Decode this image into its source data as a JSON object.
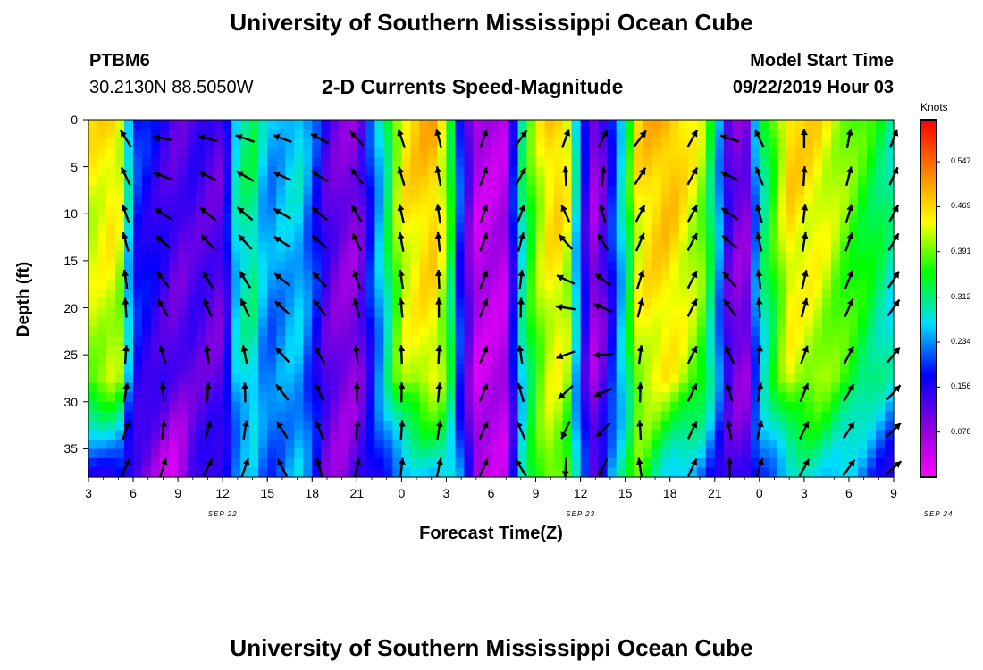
{
  "header": {
    "title": "University of Southern Mississippi Ocean Cube",
    "station_id": "PTBM6",
    "station_coords": "30.2130N 88.5050W",
    "plot_title": "2-D Currents Speed-Magnitude",
    "model_start_label": "Model Start Time",
    "model_start_value": "09/22/2019 Hour 03"
  },
  "footer": {
    "title": "University of Southern Mississippi Ocean Cube"
  },
  "chart_data": {
    "type": "heatmap",
    "title": "2-D Currents Speed-Magnitude",
    "xlabel": "Forecast Time(Z)",
    "ylabel": "Depth (ft)",
    "x_tick_labels": [
      "3",
      "6",
      "9",
      "12",
      "15",
      "18",
      "21",
      "0",
      "3",
      "6",
      "9",
      "12",
      "15",
      "18",
      "21",
      "0",
      "3",
      "6",
      "9"
    ],
    "x_range_hours": [
      0,
      54
    ],
    "date_labels": [
      {
        "text": "SEP 22",
        "hour": 9
      },
      {
        "text": "SEP 23",
        "hour": 33
      },
      {
        "text": "SEP 24",
        "hour": 57
      }
    ],
    "y_tick_labels": [
      "0",
      "5",
      "10",
      "15",
      "20",
      "25",
      "30",
      "35"
    ],
    "ylim": [
      0,
      38
    ],
    "colorbar": {
      "units": "Knots",
      "ticks": [
        "0.547",
        "0.469",
        "0.391",
        "0.312",
        "0.234",
        "0.156",
        "0.078"
      ],
      "range": [
        0.0,
        0.62
      ],
      "colors": [
        "#ff00ff",
        "#8800dd",
        "#0000ff",
        "#00ddff",
        "#00ff00",
        "#ffff00",
        "#ff7f00",
        "#ff0000"
      ]
    },
    "speed_profile_by_hour": [
      {
        "hour": 0,
        "top": 0.45,
        "bottom": 0.14
      },
      {
        "hour": 2,
        "top": 0.47,
        "bottom": 0.18
      },
      {
        "hour": 3,
        "top": 0.2,
        "bottom": 0.12
      },
      {
        "hour": 5,
        "top": 0.15,
        "bottom": 0.05
      },
      {
        "hour": 6,
        "top": 0.12,
        "bottom": 0.03
      },
      {
        "hour": 7,
        "top": 0.14,
        "bottom": 0.12
      },
      {
        "hour": 9,
        "top": 0.12,
        "bottom": 0.18
      },
      {
        "hour": 10,
        "top": 0.3,
        "bottom": 0.22
      },
      {
        "hour": 11,
        "top": 0.33,
        "bottom": 0.25
      },
      {
        "hour": 12,
        "top": 0.24,
        "bottom": 0.2
      },
      {
        "hour": 14,
        "top": 0.28,
        "bottom": 0.26
      },
      {
        "hour": 15,
        "top": 0.22,
        "bottom": 0.2
      },
      {
        "hour": 16,
        "top": 0.13,
        "bottom": 0.1
      },
      {
        "hour": 17,
        "top": 0.1,
        "bottom": 0.08
      },
      {
        "hour": 18,
        "top": 0.09,
        "bottom": 0.12
      },
      {
        "hour": 20,
        "top": 0.32,
        "bottom": 0.2
      },
      {
        "hour": 21,
        "top": 0.46,
        "bottom": 0.23
      },
      {
        "hour": 23,
        "top": 0.5,
        "bottom": 0.26
      },
      {
        "hour": 24,
        "top": 0.43,
        "bottom": 0.3
      },
      {
        "hour": 25,
        "top": 0.18,
        "bottom": 0.22
      },
      {
        "hour": 26,
        "top": 0.05,
        "bottom": 0.06
      },
      {
        "hour": 28,
        "top": 0.06,
        "bottom": 0.05
      },
      {
        "hour": 29,
        "top": 0.3,
        "bottom": 0.26
      },
      {
        "hour": 30,
        "top": 0.42,
        "bottom": 0.36
      },
      {
        "hour": 31,
        "top": 0.48,
        "bottom": 0.42
      },
      {
        "hour": 32,
        "top": 0.48,
        "bottom": 0.38
      },
      {
        "hour": 33,
        "top": 0.2,
        "bottom": 0.22
      },
      {
        "hour": 34,
        "top": 0.07,
        "bottom": 0.12
      },
      {
        "hour": 35,
        "top": 0.18,
        "bottom": 0.26
      },
      {
        "hour": 36,
        "top": 0.32,
        "bottom": 0.32
      },
      {
        "hour": 37,
        "top": 0.48,
        "bottom": 0.38
      },
      {
        "hour": 39,
        "top": 0.5,
        "bottom": 0.26
      },
      {
        "hour": 41,
        "top": 0.43,
        "bottom": 0.22
      },
      {
        "hour": 42,
        "top": 0.3,
        "bottom": 0.18
      },
      {
        "hour": 43,
        "top": 0.12,
        "bottom": 0.14
      },
      {
        "hour": 44,
        "top": 0.08,
        "bottom": 0.12
      },
      {
        "hour": 45,
        "top": 0.3,
        "bottom": 0.2
      },
      {
        "hour": 47,
        "top": 0.48,
        "bottom": 0.26
      },
      {
        "hour": 49,
        "top": 0.46,
        "bottom": 0.28
      },
      {
        "hour": 51,
        "top": 0.4,
        "bottom": 0.25
      },
      {
        "hour": 53,
        "top": 0.34,
        "bottom": 0.18
      },
      {
        "hour": 54,
        "top": 0.3,
        "bottom": 0.15
      }
    ],
    "vector_hours": [
      2.5,
      5,
      8,
      10.5,
      13,
      15.5,
      18,
      21,
      23.5,
      26.5,
      29,
      32,
      34.5,
      37,
      40.5,
      43,
      45,
      48,
      51,
      54
    ],
    "vector_depths": [
      2,
      6,
      10,
      13,
      17,
      20,
      25,
      29,
      33,
      37
    ],
    "vector_angle_profile_deg": [
      {
        "hour": 0,
        "top": 125,
        "bottom": 60
      },
      {
        "hour": 2,
        "top": 115,
        "bottom": 65
      },
      {
        "hour": 5,
        "top": 175,
        "bottom": 70
      },
      {
        "hour": 8,
        "top": 170,
        "bottom": 60
      },
      {
        "hour": 11,
        "top": 165,
        "bottom": 70
      },
      {
        "hour": 14,
        "top": 160,
        "bottom": 140
      },
      {
        "hour": 17,
        "top": 150,
        "bottom": 70
      },
      {
        "hour": 20,
        "top": 110,
        "bottom": 90
      },
      {
        "hour": 22,
        "top": 110,
        "bottom": 75
      },
      {
        "hour": 25,
        "top": 100,
        "bottom": 80
      },
      {
        "hour": 28,
        "top": 45,
        "bottom": 50
      },
      {
        "hour": 31,
        "top": 60,
        "bottom": 270
      },
      {
        "hour": 34,
        "top": 55,
        "bottom": 280
      },
      {
        "hour": 37,
        "top": 50,
        "bottom": 100
      },
      {
        "hour": 40,
        "top": 40,
        "bottom": 60
      },
      {
        "hour": 43,
        "top": 165,
        "bottom": 90
      },
      {
        "hour": 46,
        "top": 95,
        "bottom": 60
      },
      {
        "hour": 49,
        "top": 90,
        "bottom": 60
      },
      {
        "hour": 52,
        "top": 75,
        "bottom": 50
      },
      {
        "hour": 54,
        "top": 70,
        "bottom": 40
      }
    ]
  }
}
